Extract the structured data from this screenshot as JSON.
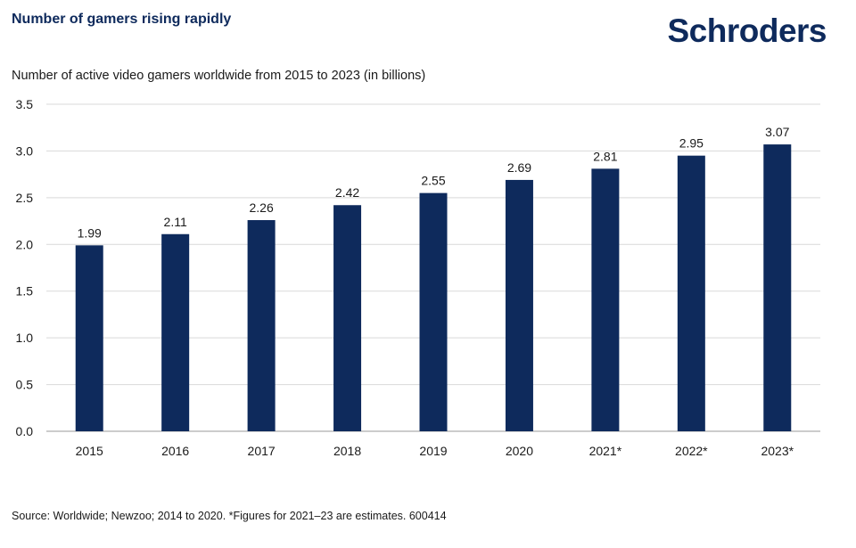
{
  "header": {
    "headline": "Number of gamers rising rapidly",
    "brand": "Schroders"
  },
  "footer": {
    "source": "Source: Worldwide; Newzoo; 2014 to 2020. *Figures for 2021–23 are estimates. 600414"
  },
  "colors": {
    "bar": "#0e2a5c",
    "grid": "#d9d9d9",
    "brand": "#0e2a5c"
  },
  "chart_data": {
    "type": "bar",
    "title": "Number of active video gamers worldwide from 2015 to 2023 (in billions)",
    "xlabel": "",
    "ylabel": "",
    "categories": [
      "2015",
      "2016",
      "2017",
      "2018",
      "2019",
      "2020",
      "2021*",
      "2022*",
      "2023*"
    ],
    "values": [
      1.99,
      2.11,
      2.26,
      2.42,
      2.55,
      2.69,
      2.81,
      2.95,
      3.07
    ],
    "value_labels": [
      "1.99",
      "2.11",
      "2.26",
      "2.42",
      "2.55",
      "2.69",
      "2.81",
      "2.95",
      "3.07"
    ],
    "ylim": [
      0,
      3.5
    ],
    "yticks": [
      0,
      0.5,
      1.0,
      1.5,
      2.0,
      2.5,
      3.0,
      3.5
    ],
    "ytick_labels": [
      "0.0",
      "0.5",
      "1.0",
      "1.5",
      "2.0",
      "2.5",
      "3.0",
      "3.5"
    ],
    "grid": true,
    "legend": "none"
  }
}
